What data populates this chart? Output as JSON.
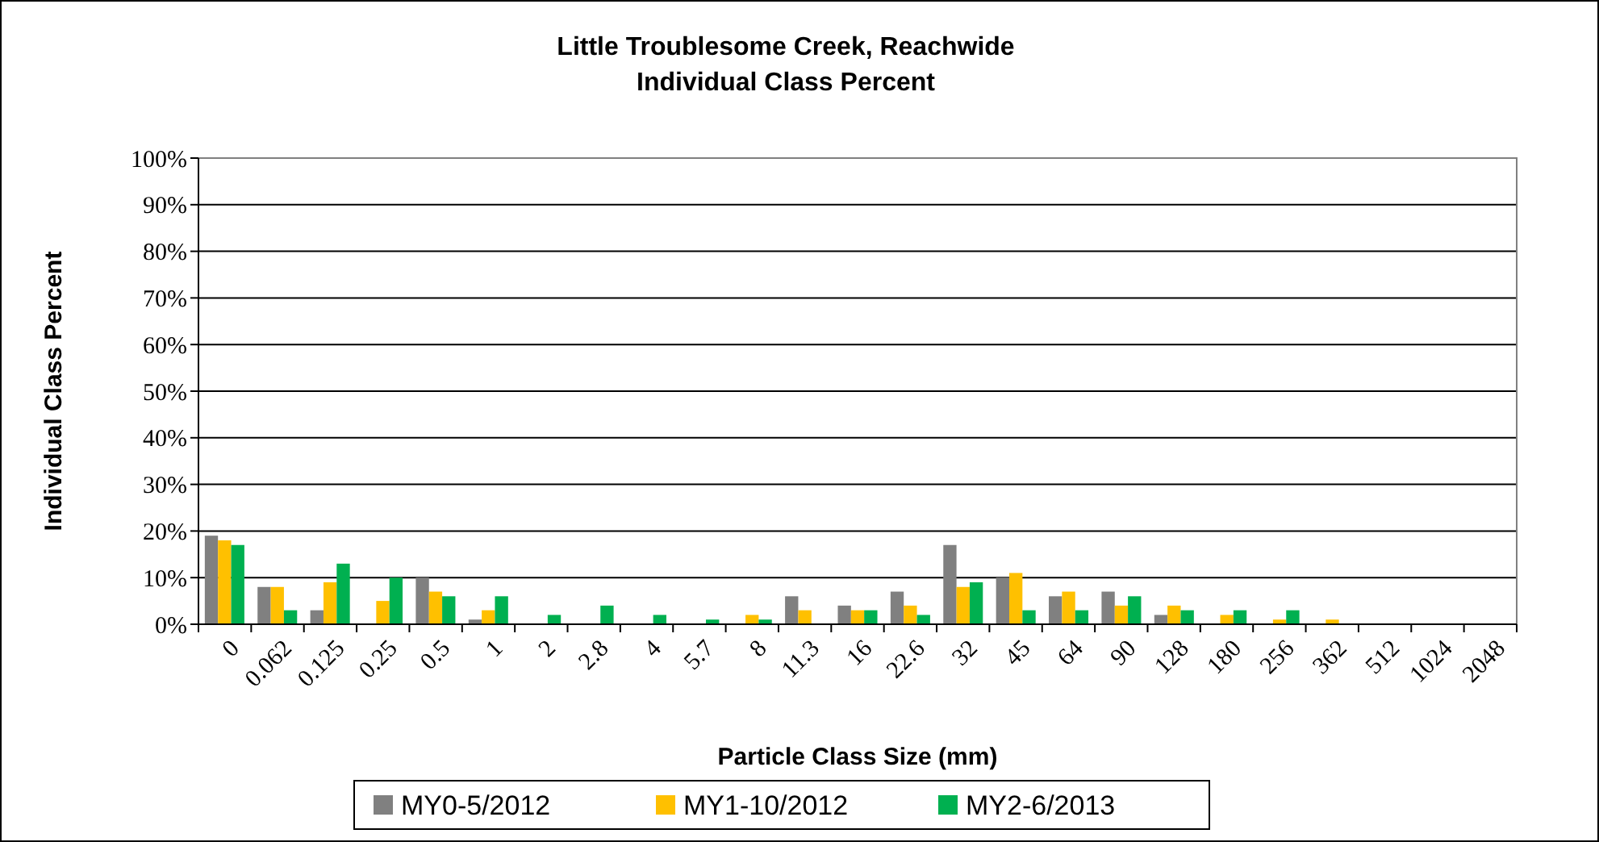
{
  "chart_data": {
    "type": "bar",
    "title": "Little Troublesome Creek, Reachwide",
    "subtitle": "Individual Class Percent",
    "xlabel": "Particle Class Size (mm)",
    "ylabel": "Individual Class Percent",
    "categories": [
      "0",
      "0.062",
      "0.125",
      "0.25",
      "0.5",
      "1",
      "2",
      "2.8",
      "4",
      "5.7",
      "8",
      "11.3",
      "16",
      "22.6",
      "32",
      "45",
      "64",
      "90",
      "128",
      "180",
      "256",
      "362",
      "512",
      "1024",
      "2048"
    ],
    "series": [
      {
        "name": "MY0-5/2012",
        "color": "#808080",
        "values": [
          19,
          8,
          3,
          0,
          10,
          1,
          0,
          0,
          0,
          0,
          0,
          6,
          4,
          7,
          17,
          10,
          6,
          7,
          2,
          0,
          0,
          0,
          0,
          0,
          0
        ]
      },
      {
        "name": "MY1-10/2012",
        "color": "#ffc000",
        "values": [
          18,
          8,
          9,
          5,
          7,
          3,
          0,
          0,
          0,
          0,
          2,
          3,
          3,
          4,
          8,
          11,
          7,
          4,
          4,
          2,
          1,
          1,
          0,
          0,
          0
        ]
      },
      {
        "name": "MY2-6/2013",
        "color": "#00b050",
        "values": [
          17,
          3,
          13,
          10,
          6,
          6,
          2,
          4,
          2,
          1,
          1,
          0,
          3,
          2,
          9,
          3,
          3,
          6,
          3,
          3,
          3,
          0,
          0,
          0,
          0
        ]
      }
    ],
    "ylim": [
      0,
      100
    ],
    "yticks": [
      {
        "value": 0,
        "label": "0%"
      },
      {
        "value": 10,
        "label": "10%"
      },
      {
        "value": 20,
        "label": "20%"
      },
      {
        "value": 30,
        "label": "30%"
      },
      {
        "value": 40,
        "label": "40%"
      },
      {
        "value": 50,
        "label": "50%"
      },
      {
        "value": 60,
        "label": "60%"
      },
      {
        "value": 70,
        "label": "70%"
      },
      {
        "value": 80,
        "label": "80%"
      },
      {
        "value": 90,
        "label": "90%"
      },
      {
        "value": 100,
        "label": "100%"
      }
    ],
    "grid": "y",
    "legend": "bottom"
  }
}
